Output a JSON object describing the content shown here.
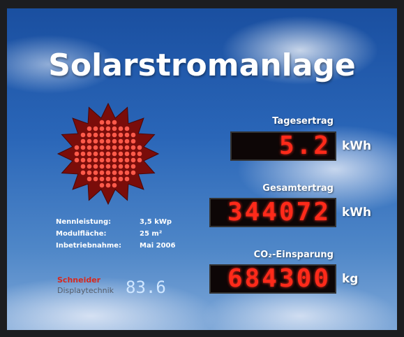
{
  "header": {
    "title": "Solarstromanlage"
  },
  "counters": [
    {
      "label": "Tagesertrag",
      "value": "5.2",
      "unit": "kWh"
    },
    {
      "label": "Gesamtertrag",
      "value": "344072",
      "unit": "kWh"
    },
    {
      "label": "CO₂-Einsparung",
      "value": "684300",
      "unit": "kg"
    }
  ],
  "specs": [
    {
      "label": "Nennleistung:",
      "value": "3,5 kWp"
    },
    {
      "label": "Modulfläche:",
      "value": "25 m²"
    },
    {
      "label": "Inbetriebnahme:",
      "value": "Mai 2006"
    }
  ],
  "brand": {
    "name": "Schneider",
    "subtitle": "Displaytechnik"
  },
  "small_display": "83.6"
}
